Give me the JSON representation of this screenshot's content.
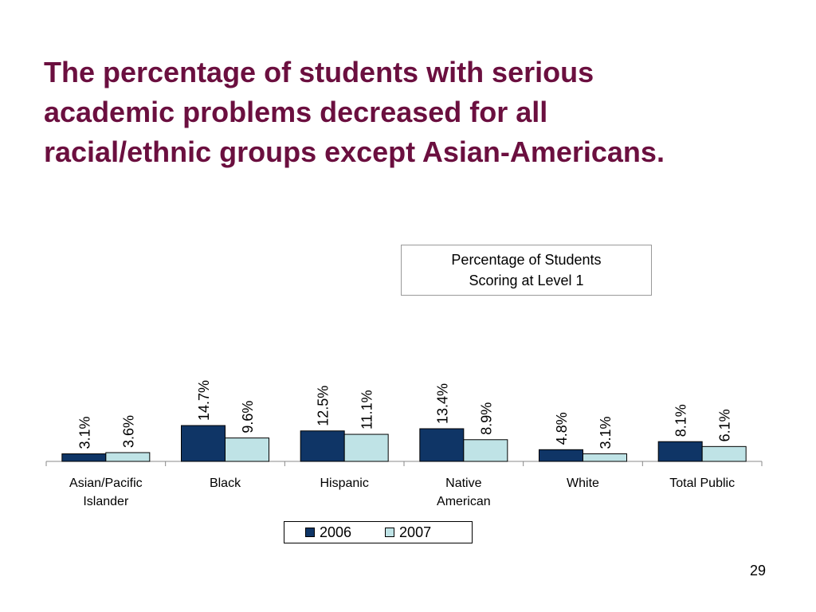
{
  "title_lines": [
    "The percentage of students with serious",
    "academic problems decreased for all",
    "racial/ethnic groups except Asian-Americans."
  ],
  "page_number": "29",
  "colors": {
    "title": "#6b0f3f",
    "series_2006": "#0f3566",
    "series_2007": "#bfe3e6"
  },
  "chart_data": {
    "type": "bar",
    "title_lines": [
      "Percentage of Students",
      "Scoring at Level 1"
    ],
    "categories": [
      [
        "Asian/Pacific",
        "Islander"
      ],
      [
        "Black"
      ],
      [
        "Hispanic"
      ],
      [
        "Native",
        "American"
      ],
      [
        "White"
      ],
      [
        "Total Public"
      ]
    ],
    "series": [
      {
        "name": "2006",
        "values": [
          3.1,
          14.7,
          12.5,
          13.4,
          4.8,
          8.1
        ],
        "labels": [
          "3.1%",
          "14.7%",
          "12.5%",
          "13.4%",
          "4.8%",
          "8.1%"
        ]
      },
      {
        "name": "2007",
        "values": [
          3.6,
          9.6,
          11.1,
          8.9,
          3.1,
          6.1
        ],
        "labels": [
          "3.6%",
          "9.6%",
          "11.1%",
          "8.9%",
          "3.1%",
          "6.1%"
        ]
      }
    ],
    "ylim": [
      0,
      20
    ],
    "grid": false,
    "legend_position": "bottom"
  }
}
